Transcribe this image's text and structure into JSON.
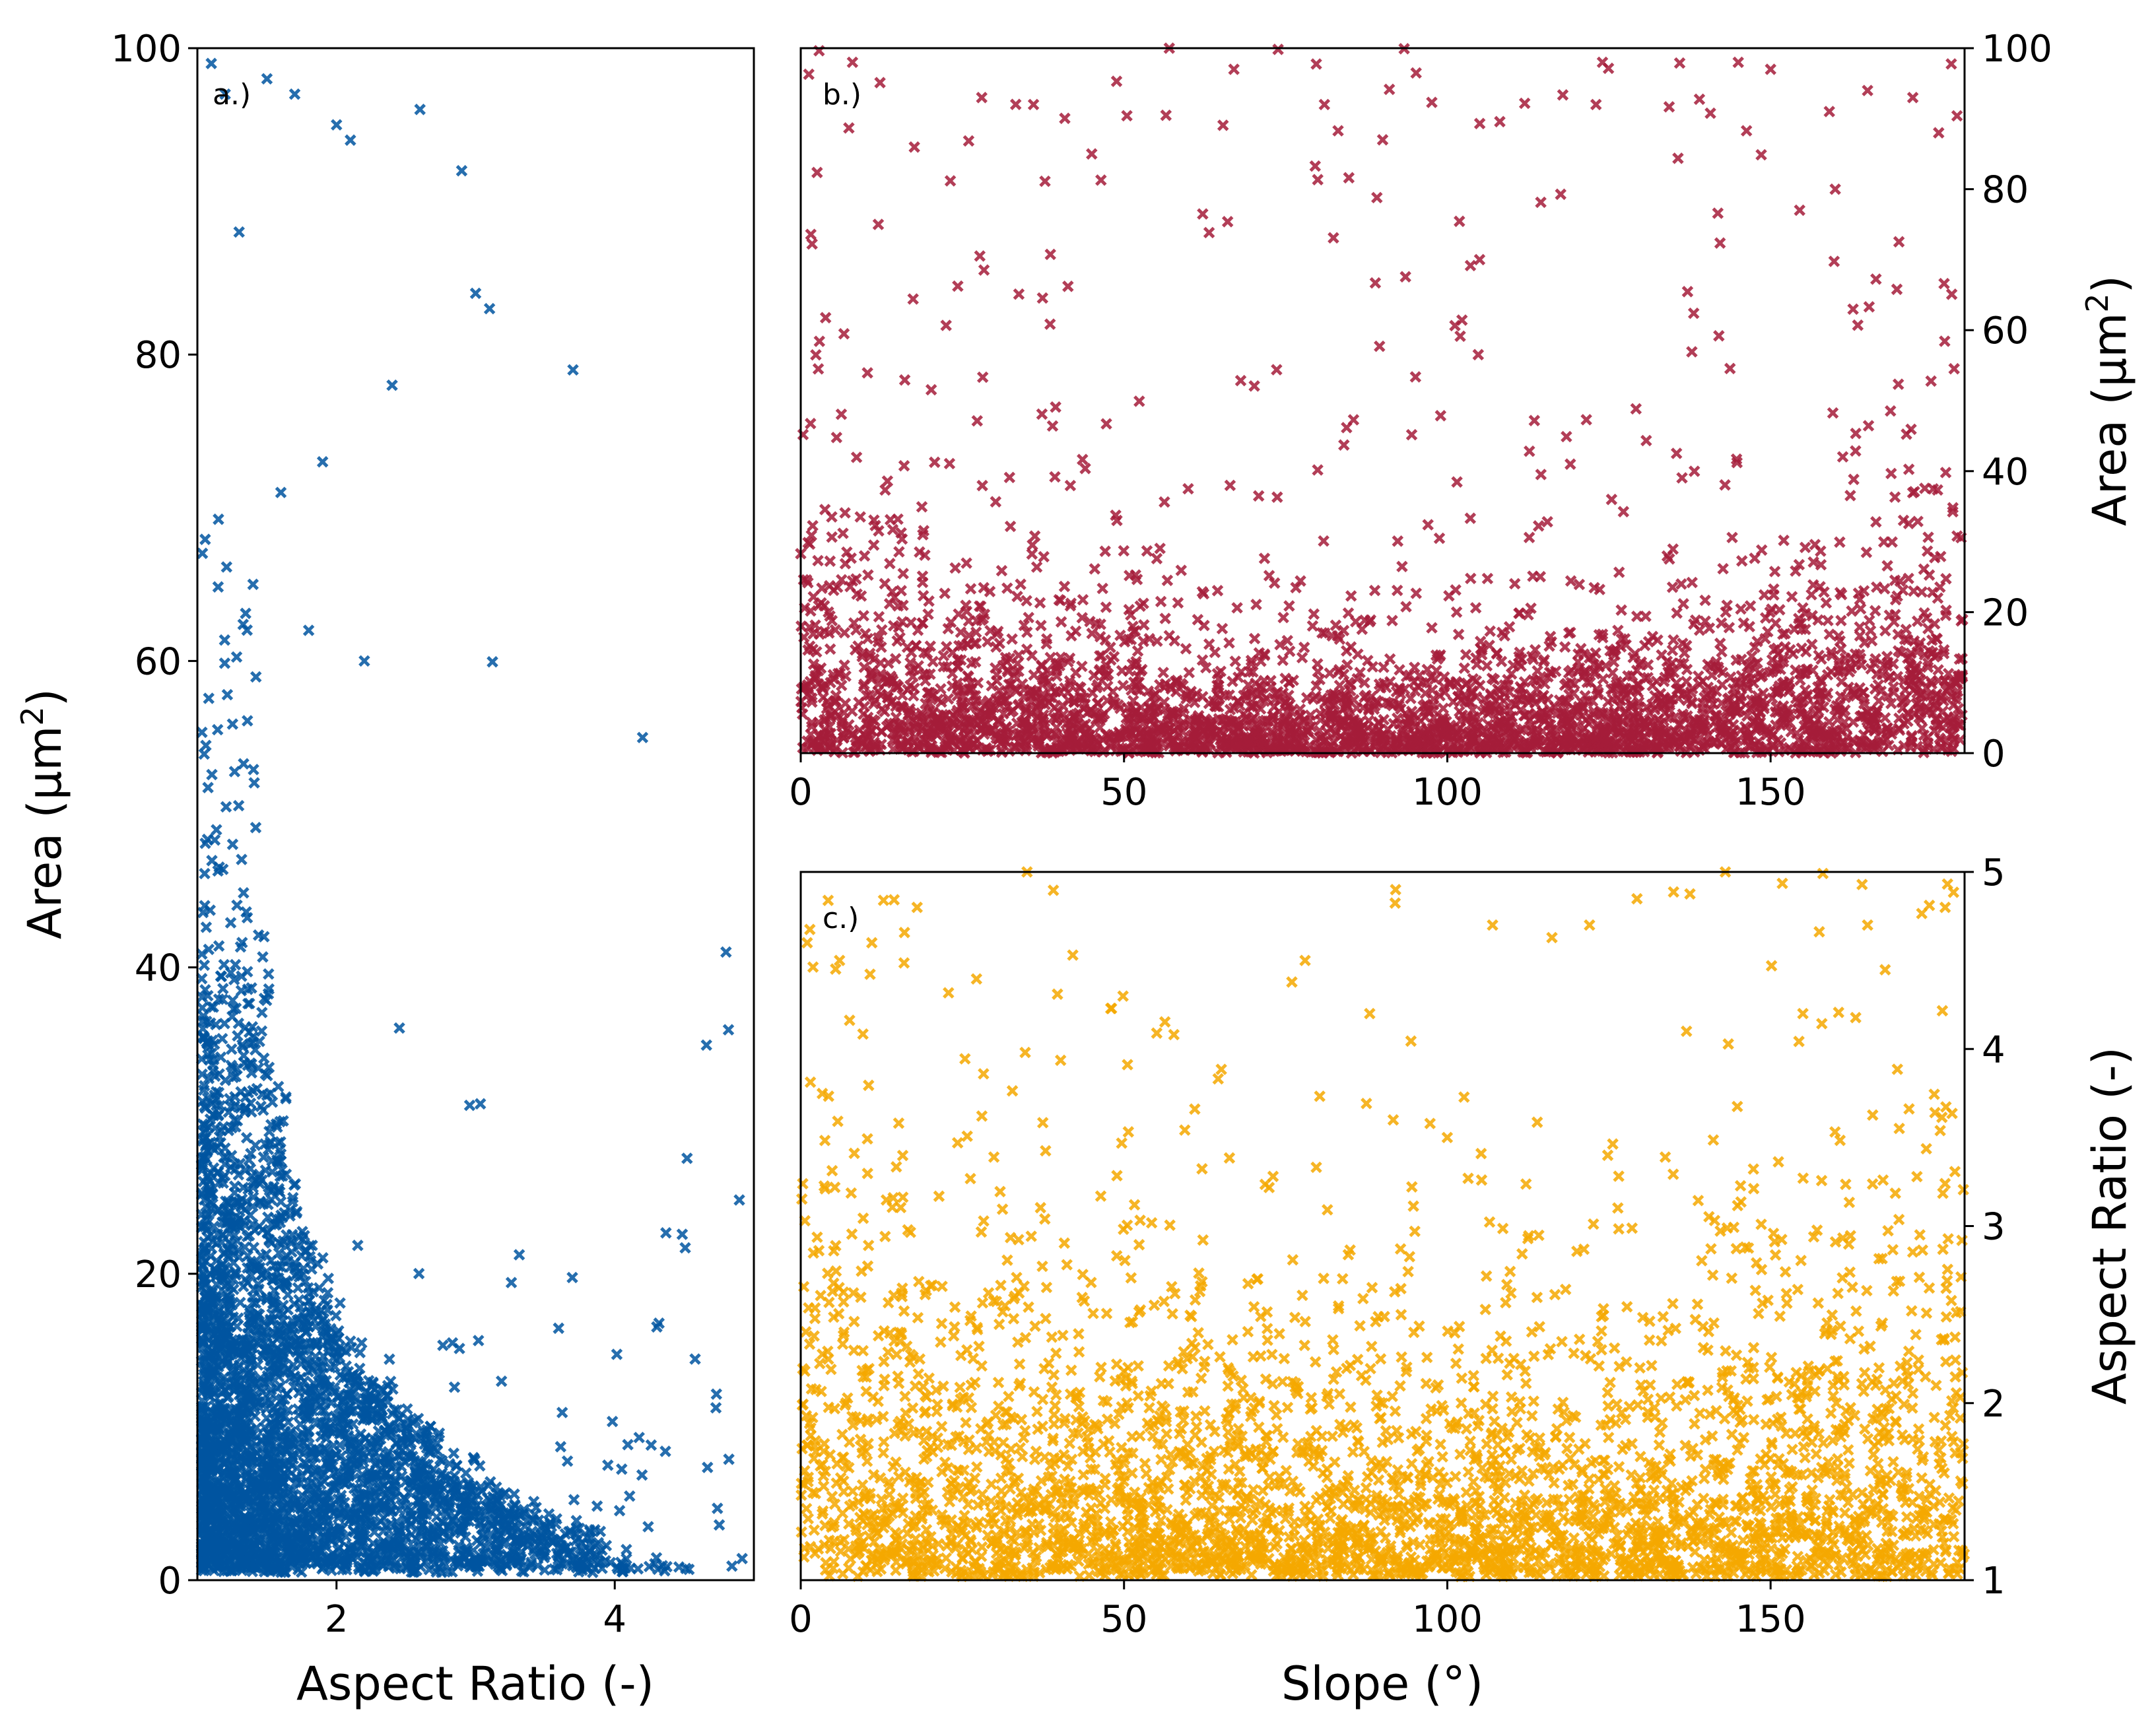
{
  "chart_data": [
    {
      "type": "scatter",
      "panel_label": "a.)",
      "marker": "x",
      "color": "#0055a0",
      "xlabel": "Aspect Ratio (-)",
      "ylabel_main": "Area (μm",
      "ylabel_sup": "2",
      "ylabel_end": ")",
      "xlim": [
        1,
        5
      ],
      "ylim": [
        0,
        100
      ],
      "xticks": [
        2,
        4
      ],
      "xtick_labels": [
        "2",
        "4"
      ],
      "yticks": [
        0,
        20,
        40,
        60,
        80,
        100
      ],
      "ytick_labels": [
        "0",
        "20",
        "40",
        "60",
        "80",
        "100"
      ],
      "n_points": 3500,
      "x": [
        1.1,
        1.2,
        1.5,
        1.7,
        2.0,
        2.1,
        2.6,
        2.9,
        3.0,
        3.1,
        3.7,
        4.2,
        4.8,
        1.3,
        1.6,
        1.9,
        2.4,
        1.4,
        1.8,
        2.2
      ],
      "y": [
        99,
        97,
        98,
        97,
        95,
        94,
        96,
        92,
        84,
        83,
        79,
        55,
        41,
        88,
        71,
        73,
        78,
        65,
        62,
        60
      ],
      "distribution_note": "dense cloud near Aspect Ratio 1.1-2.5 and Area 0-20; spreads toward higher area at low aspect ratio and toward lower area at high aspect ratio"
    },
    {
      "type": "scatter",
      "panel_label": "b.)",
      "marker": "x",
      "color": "#a51c3a",
      "xlabel": "",
      "ylabel_main": "Area (μm",
      "ylabel_sup": "2",
      "ylabel_end": ")",
      "xlim": [
        0,
        180
      ],
      "ylim": [
        0,
        100
      ],
      "xticks": [
        0,
        50,
        100,
        150
      ],
      "xtick_labels": [
        "0",
        "50",
        "100",
        "150"
      ],
      "yticks": [
        0,
        20,
        40,
        60,
        80,
        100
      ],
      "ytick_labels": [
        "0",
        "20",
        "40",
        "60",
        "80",
        "100"
      ],
      "n_points": 3500,
      "x": [
        57,
        67,
        124,
        145,
        150,
        165,
        172,
        8,
        36,
        81,
        123,
        28,
        45,
        105,
        160,
        176,
        12,
        90
      ],
      "y": [
        100,
        97,
        98,
        98,
        97,
        94,
        93,
        98,
        92,
        92,
        92,
        93,
        85,
        70,
        80,
        88,
        75,
        87
      ],
      "distribution_note": "dense band at Area 0-10 across all slopes; more points with larger area near slope 0-30 and 150-180"
    },
    {
      "type": "scatter",
      "panel_label": "c.)",
      "marker": "x",
      "color": "#f5a800",
      "xlabel": "Slope (°)",
      "ylabel_main": "Aspect Ratio (-)",
      "ylabel_sup": "",
      "ylabel_end": "",
      "xlim": [
        0,
        180
      ],
      "ylim": [
        1,
        5
      ],
      "xticks": [
        0,
        50,
        100,
        150
      ],
      "xtick_labels": [
        "0",
        "50",
        "100",
        "150"
      ],
      "yticks": [
        1,
        2,
        3,
        4,
        5
      ],
      "ytick_labels": [
        "1",
        "2",
        "3",
        "4",
        "5"
      ],
      "n_points": 3500,
      "x": [
        35,
        92,
        143,
        18,
        107,
        122,
        165,
        177,
        1,
        6,
        11,
        88,
        78,
        137,
        155,
        100
      ],
      "y": [
        5.0,
        4.9,
        5.0,
        4.8,
        4.7,
        4.7,
        4.7,
        4.8,
        4.6,
        4.5,
        4.6,
        4.2,
        4.5,
        4.1,
        4.2,
        3.5
      ],
      "distribution_note": "dense band at Aspect Ratio 1-2.2 across all slopes; higher aspect ratios more frequent near slope 0-30 and 150-180"
    }
  ]
}
